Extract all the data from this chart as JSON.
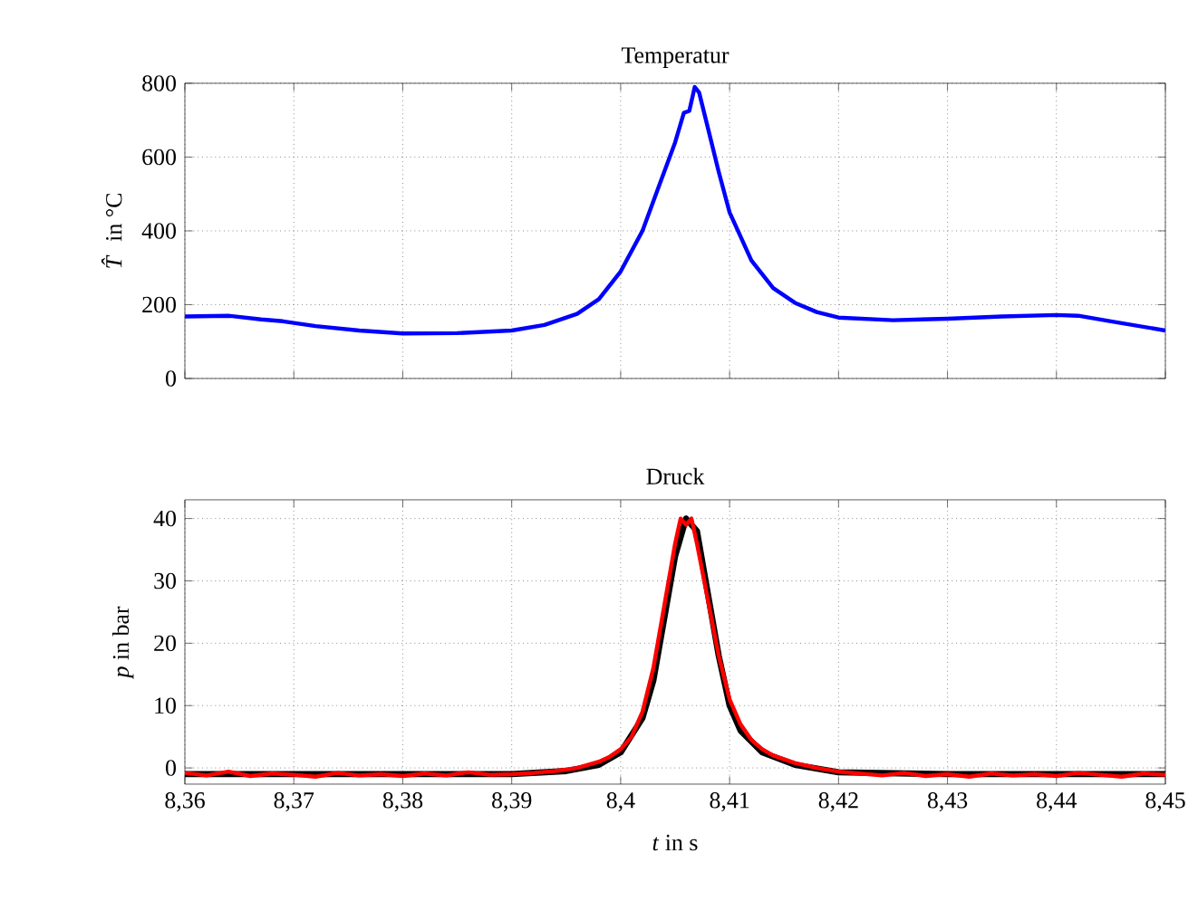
{
  "chart_data": [
    {
      "type": "line",
      "title": "Temperatur",
      "ylabel": "*T̂* in °C",
      "xlim": [
        8.36,
        8.45
      ],
      "ylim": [
        0,
        800
      ],
      "xticks": [
        8.36,
        8.37,
        8.38,
        8.39,
        8.4,
        8.41,
        8.42,
        8.43,
        8.44,
        8.45
      ],
      "yticks": [
        0,
        200,
        400,
        600,
        800
      ],
      "grid": true,
      "tick_labels": "y",
      "series": [
        {
          "color": "#0000ff",
          "x": [
            8.36,
            8.364,
            8.367,
            8.369,
            8.372,
            8.376,
            8.38,
            8.385,
            8.39,
            8.393,
            8.396,
            8.398,
            8.4,
            8.402,
            8.4035,
            8.405,
            8.4058,
            8.4063,
            8.4068,
            8.4072,
            8.408,
            8.409,
            8.41,
            8.412,
            8.414,
            8.416,
            8.418,
            8.42,
            8.425,
            8.43,
            8.435,
            8.44,
            8.442,
            8.445,
            8.45
          ],
          "values": [
            168,
            170,
            160,
            155,
            142,
            130,
            122,
            123,
            130,
            145,
            175,
            215,
            290,
            400,
            520,
            640,
            720,
            725,
            790,
            775,
            680,
            560,
            450,
            320,
            245,
            205,
            180,
            165,
            158,
            162,
            168,
            172,
            170,
            155,
            130
          ]
        }
      ]
    },
    {
      "type": "line",
      "title": "Druck",
      "xlabel": "*t* in s",
      "ylabel": "*p* in bar",
      "xlim": [
        8.36,
        8.45
      ],
      "ylim": [
        -2.6,
        43
      ],
      "xticks": [
        {
          "value": 8.36,
          "label": "8,36"
        },
        {
          "value": 8.37,
          "label": "8,37"
        },
        {
          "value": 8.38,
          "label": "8,38"
        },
        {
          "value": 8.39,
          "label": "8,39"
        },
        {
          "value": 8.4,
          "label": "8,4"
        },
        {
          "value": 8.41,
          "label": "8,41"
        },
        {
          "value": 8.42,
          "label": "8,42"
        },
        {
          "value": 8.43,
          "label": "8,43"
        },
        {
          "value": 8.44,
          "label": "8,44"
        },
        {
          "value": 8.45,
          "label": "8,45"
        }
      ],
      "yticks": [
        0,
        10,
        20,
        30,
        40
      ],
      "grid": true,
      "series": [
        {
          "color": "#000000",
          "x": [
            8.36,
            8.39,
            8.395,
            8.398,
            8.4,
            8.402,
            8.403,
            8.404,
            8.405,
            8.406,
            8.407,
            8.408,
            8.409,
            8.41,
            8.411,
            8.413,
            8.416,
            8.42,
            8.43,
            8.45
          ],
          "values": [
            -1,
            -1,
            -0.5,
            0.5,
            2.5,
            8,
            14,
            24,
            34,
            40,
            38,
            28,
            18,
            10,
            6,
            2.5,
            0.5,
            -0.7,
            -1,
            -1
          ]
        },
        {
          "color": "#ff0000",
          "x": [
            8.36,
            8.362,
            8.364,
            8.366,
            8.368,
            8.37,
            8.372,
            8.374,
            8.376,
            8.378,
            8.38,
            8.382,
            8.384,
            8.386,
            8.388,
            8.39,
            8.392,
            8.394,
            8.396,
            8.397,
            8.398,
            8.399,
            8.4,
            8.401,
            8.402,
            8.403,
            8.404,
            8.405,
            8.4055,
            8.406,
            8.4065,
            8.407,
            8.408,
            8.409,
            8.41,
            8.411,
            8.412,
            8.413,
            8.414,
            8.416,
            8.418,
            8.42,
            8.422,
            8.424,
            8.426,
            8.428,
            8.43,
            8.432,
            8.434,
            8.436,
            8.438,
            8.44,
            8.442,
            8.444,
            8.446,
            8.448,
            8.45
          ],
          "values": [
            -0.8,
            -1.2,
            -0.6,
            -1.3,
            -0.9,
            -1.1,
            -1.4,
            -0.8,
            -1.2,
            -1,
            -1.3,
            -0.9,
            -1.2,
            -0.7,
            -1.1,
            -1,
            -0.8,
            -0.5,
            0,
            0.5,
            1,
            1.8,
            3,
            5,
            9,
            16,
            26,
            36,
            40,
            39,
            40,
            36,
            27,
            18,
            11,
            7,
            4.5,
            3,
            2,
            0.8,
            0,
            -0.6,
            -0.9,
            -1.2,
            -0.8,
            -1.3,
            -1,
            -1.4,
            -0.9,
            -1.2,
            -1,
            -1.3,
            -0.8,
            -1.1,
            -1.4,
            -0.9,
            -1.1
          ]
        }
      ]
    }
  ]
}
